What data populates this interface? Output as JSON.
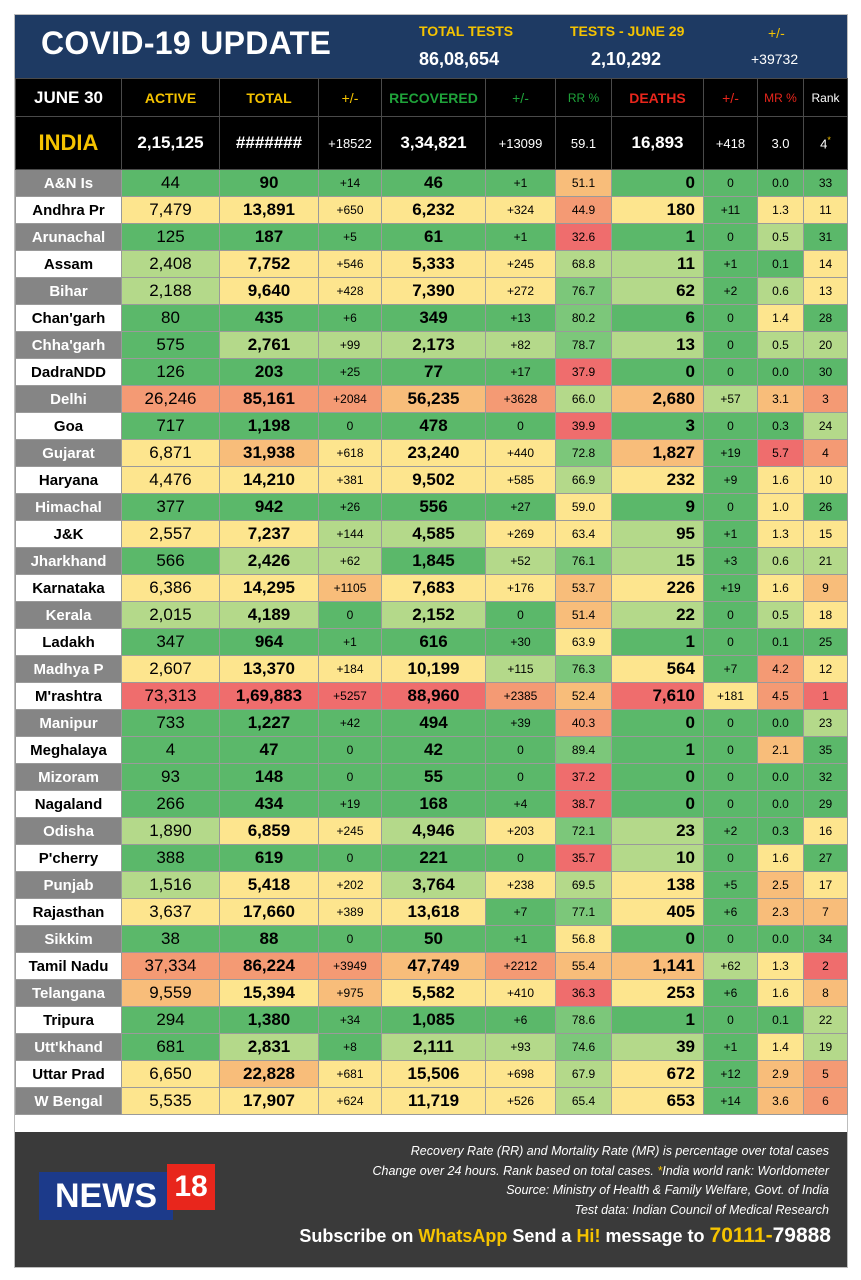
{
  "header": {
    "title": "COVID-19 UPDATE",
    "total_tests_label": "TOTAL TESTS",
    "total_tests_value": "86,08,654",
    "tests_day_label": "TESTS - JUNE 29",
    "tests_day_value": "2,10,292",
    "change_label": "+/-",
    "change_value": "+39732"
  },
  "columns": {
    "date": "JUNE 30",
    "active": "ACTIVE",
    "total": "TOTAL",
    "total_change": "+/-",
    "recovered": "RECOVERED",
    "recovered_change": "+/-",
    "rr": "RR %",
    "deaths": "DEATHS",
    "deaths_change": "+/-",
    "mr": "MR %",
    "rank": "Rank"
  },
  "india": {
    "name": "INDIA",
    "active": "2,15,125",
    "total": "#######",
    "total_change": "+18522",
    "recovered": "3,34,821",
    "recovered_change": "+13099",
    "rr": "59.1",
    "deaths": "16,893",
    "deaths_change": "+418",
    "mr": "3.0",
    "rank": "4",
    "rank_mark": "*"
  },
  "colors": {
    "green_dark": "#5bb86a",
    "green": "#7cc77a",
    "green_light": "#b4d98a",
    "yellow": "#fde58e",
    "orange": "#f8bd7a",
    "salmon": "#f49a74",
    "red": "#ef6d6d"
  },
  "states": [
    {
      "name": "A&N Is",
      "active": "44",
      "total": "90",
      "total_change": "+14",
      "recovered": "46",
      "recovered_change": "+1",
      "rr": "51.1",
      "deaths": "0",
      "deaths_change": "0",
      "mr": "0.0",
      "rank": "33"
    },
    {
      "name": "Andhra Pr",
      "active": "7,479",
      "total": "13,891",
      "total_change": "+650",
      "recovered": "6,232",
      "recovered_change": "+324",
      "rr": "44.9",
      "deaths": "180",
      "deaths_change": "+11",
      "mr": "1.3",
      "rank": "11"
    },
    {
      "name": "Arunachal",
      "active": "125",
      "total": "187",
      "total_change": "+5",
      "recovered": "61",
      "recovered_change": "+1",
      "rr": "32.6",
      "deaths": "1",
      "deaths_change": "0",
      "mr": "0.5",
      "rank": "31"
    },
    {
      "name": "Assam",
      "active": "2,408",
      "total": "7,752",
      "total_change": "+546",
      "recovered": "5,333",
      "recovered_change": "+245",
      "rr": "68.8",
      "deaths": "11",
      "deaths_change": "+1",
      "mr": "0.1",
      "rank": "14"
    },
    {
      "name": "Bihar",
      "active": "2,188",
      "total": "9,640",
      "total_change": "+428",
      "recovered": "7,390",
      "recovered_change": "+272",
      "rr": "76.7",
      "deaths": "62",
      "deaths_change": "+2",
      "mr": "0.6",
      "rank": "13"
    },
    {
      "name": "Chan'garh",
      "active": "80",
      "total": "435",
      "total_change": "+6",
      "recovered": "349",
      "recovered_change": "+13",
      "rr": "80.2",
      "deaths": "6",
      "deaths_change": "0",
      "mr": "1.4",
      "rank": "28"
    },
    {
      "name": "Chha'garh",
      "active": "575",
      "total": "2,761",
      "total_change": "+99",
      "recovered": "2,173",
      "recovered_change": "+82",
      "rr": "78.7",
      "deaths": "13",
      "deaths_change": "0",
      "mr": "0.5",
      "rank": "20"
    },
    {
      "name": "DadraNDD",
      "active": "126",
      "total": "203",
      "total_change": "+25",
      "recovered": "77",
      "recovered_change": "+17",
      "rr": "37.9",
      "deaths": "0",
      "deaths_change": "0",
      "mr": "0.0",
      "rank": "30"
    },
    {
      "name": "Delhi",
      "active": "26,246",
      "total": "85,161",
      "total_change": "+2084",
      "recovered": "56,235",
      "recovered_change": "+3628",
      "rr": "66.0",
      "deaths": "2,680",
      "deaths_change": "+57",
      "mr": "3.1",
      "rank": "3"
    },
    {
      "name": "Goa",
      "active": "717",
      "total": "1,198",
      "total_change": "0",
      "recovered": "478",
      "recovered_change": "0",
      "rr": "39.9",
      "deaths": "3",
      "deaths_change": "0",
      "mr": "0.3",
      "rank": "24"
    },
    {
      "name": "Gujarat",
      "active": "6,871",
      "total": "31,938",
      "total_change": "+618",
      "recovered": "23,240",
      "recovered_change": "+440",
      "rr": "72.8",
      "deaths": "1,827",
      "deaths_change": "+19",
      "mr": "5.7",
      "rank": "4"
    },
    {
      "name": "Haryana",
      "active": "4,476",
      "total": "14,210",
      "total_change": "+381",
      "recovered": "9,502",
      "recovered_change": "+585",
      "rr": "66.9",
      "deaths": "232",
      "deaths_change": "+9",
      "mr": "1.6",
      "rank": "10"
    },
    {
      "name": "Himachal",
      "active": "377",
      "total": "942",
      "total_change": "+26",
      "recovered": "556",
      "recovered_change": "+27",
      "rr": "59.0",
      "deaths": "9",
      "deaths_change": "0",
      "mr": "1.0",
      "rank": "26"
    },
    {
      "name": "J&K",
      "active": "2,557",
      "total": "7,237",
      "total_change": "+144",
      "recovered": "4,585",
      "recovered_change": "+269",
      "rr": "63.4",
      "deaths": "95",
      "deaths_change": "+1",
      "mr": "1.3",
      "rank": "15"
    },
    {
      "name": "Jharkhand",
      "active": "566",
      "total": "2,426",
      "total_change": "+62",
      "recovered": "1,845",
      "recovered_change": "+52",
      "rr": "76.1",
      "deaths": "15",
      "deaths_change": "+3",
      "mr": "0.6",
      "rank": "21"
    },
    {
      "name": "Karnataka",
      "active": "6,386",
      "total": "14,295",
      "total_change": "+1105",
      "recovered": "7,683",
      "recovered_change": "+176",
      "rr": "53.7",
      "deaths": "226",
      "deaths_change": "+19",
      "mr": "1.6",
      "rank": "9"
    },
    {
      "name": "Kerala",
      "active": "2,015",
      "total": "4,189",
      "total_change": "0",
      "recovered": "2,152",
      "recovered_change": "0",
      "rr": "51.4",
      "deaths": "22",
      "deaths_change": "0",
      "mr": "0.5",
      "rank": "18"
    },
    {
      "name": "Ladakh",
      "active": "347",
      "total": "964",
      "total_change": "+1",
      "recovered": "616",
      "recovered_change": "+30",
      "rr": "63.9",
      "deaths": "1",
      "deaths_change": "0",
      "mr": "0.1",
      "rank": "25"
    },
    {
      "name": "Madhya P",
      "active": "2,607",
      "total": "13,370",
      "total_change": "+184",
      "recovered": "10,199",
      "recovered_change": "+115",
      "rr": "76.3",
      "deaths": "564",
      "deaths_change": "+7",
      "mr": "4.2",
      "rank": "12"
    },
    {
      "name": "M'rashtra",
      "active": "73,313",
      "total": "1,69,883",
      "total_change": "+5257",
      "recovered": "88,960",
      "recovered_change": "+2385",
      "rr": "52.4",
      "deaths": "7,610",
      "deaths_change": "+181",
      "mr": "4.5",
      "rank": "1"
    },
    {
      "name": "Manipur",
      "active": "733",
      "total": "1,227",
      "total_change": "+42",
      "recovered": "494",
      "recovered_change": "+39",
      "rr": "40.3",
      "deaths": "0",
      "deaths_change": "0",
      "mr": "0.0",
      "rank": "23"
    },
    {
      "name": "Meghalaya",
      "active": "4",
      "total": "47",
      "total_change": "0",
      "recovered": "42",
      "recovered_change": "0",
      "rr": "89.4",
      "deaths": "1",
      "deaths_change": "0",
      "mr": "2.1",
      "rank": "35"
    },
    {
      "name": "Mizoram",
      "active": "93",
      "total": "148",
      "total_change": "0",
      "recovered": "55",
      "recovered_change": "0",
      "rr": "37.2",
      "deaths": "0",
      "deaths_change": "0",
      "mr": "0.0",
      "rank": "32"
    },
    {
      "name": "Nagaland",
      "active": "266",
      "total": "434",
      "total_change": "+19",
      "recovered": "168",
      "recovered_change": "+4",
      "rr": "38.7",
      "deaths": "0",
      "deaths_change": "0",
      "mr": "0.0",
      "rank": "29"
    },
    {
      "name": "Odisha",
      "active": "1,890",
      "total": "6,859",
      "total_change": "+245",
      "recovered": "4,946",
      "recovered_change": "+203",
      "rr": "72.1",
      "deaths": "23",
      "deaths_change": "+2",
      "mr": "0.3",
      "rank": "16"
    },
    {
      "name": "P'cherry",
      "active": "388",
      "total": "619",
      "total_change": "0",
      "recovered": "221",
      "recovered_change": "0",
      "rr": "35.7",
      "deaths": "10",
      "deaths_change": "0",
      "mr": "1.6",
      "rank": "27"
    },
    {
      "name": "Punjab",
      "active": "1,516",
      "total": "5,418",
      "total_change": "+202",
      "recovered": "3,764",
      "recovered_change": "+238",
      "rr": "69.5",
      "deaths": "138",
      "deaths_change": "+5",
      "mr": "2.5",
      "rank": "17"
    },
    {
      "name": "Rajasthan",
      "active": "3,637",
      "total": "17,660",
      "total_change": "+389",
      "recovered": "13,618",
      "recovered_change": "+7",
      "rr": "77.1",
      "deaths": "405",
      "deaths_change": "+6",
      "mr": "2.3",
      "rank": "7"
    },
    {
      "name": "Sikkim",
      "active": "38",
      "total": "88",
      "total_change": "0",
      "recovered": "50",
      "recovered_change": "+1",
      "rr": "56.8",
      "deaths": "0",
      "deaths_change": "0",
      "mr": "0.0",
      "rank": "34"
    },
    {
      "name": "Tamil Nadu",
      "active": "37,334",
      "total": "86,224",
      "total_change": "+3949",
      "recovered": "47,749",
      "recovered_change": "+2212",
      "rr": "55.4",
      "deaths": "1,141",
      "deaths_change": "+62",
      "mr": "1.3",
      "rank": "2"
    },
    {
      "name": "Telangana",
      "active": "9,559",
      "total": "15,394",
      "total_change": "+975",
      "recovered": "5,582",
      "recovered_change": "+410",
      "rr": "36.3",
      "deaths": "253",
      "deaths_change": "+6",
      "mr": "1.6",
      "rank": "8"
    },
    {
      "name": "Tripura",
      "active": "294",
      "total": "1,380",
      "total_change": "+34",
      "recovered": "1,085",
      "recovered_change": "+6",
      "rr": "78.6",
      "deaths": "1",
      "deaths_change": "0",
      "mr": "0.1",
      "rank": "22"
    },
    {
      "name": "Utt'khand",
      "active": "681",
      "total": "2,831",
      "total_change": "+8",
      "recovered": "2,111",
      "recovered_change": "+93",
      "rr": "74.6",
      "deaths": "39",
      "deaths_change": "+1",
      "mr": "1.4",
      "rank": "19"
    },
    {
      "name": "Uttar Prad",
      "active": "6,650",
      "total": "22,828",
      "total_change": "+681",
      "recovered": "15,506",
      "recovered_change": "+698",
      "rr": "67.9",
      "deaths": "672",
      "deaths_change": "+12",
      "mr": "2.9",
      "rank": "5"
    },
    {
      "name": "W Bengal",
      "active": "5,535",
      "total": "17,907",
      "total_change": "+624",
      "recovered": "11,719",
      "recovered_change": "+526",
      "rr": "65.4",
      "deaths": "653",
      "deaths_change": "+14",
      "mr": "3.6",
      "rank": "6"
    }
  ],
  "footer": {
    "logo_text": "NEWS",
    "logo_number": "18",
    "note1": "Recovery Rate (RR) and Mortality Rate (MR) is percentage over total cases",
    "note2_a": "Change over 24 hours. Rank based on total cases.",
    "note2_star": "*",
    "note2_b": "India world rank: Worldometer",
    "note3": "Source: Ministry of Health & Family Welfare, Govt. of India",
    "note4": "Test data: Indian Council of Medical Research",
    "subscribe_a": "Subscribe on",
    "subscribe_whatsapp": "WhatsApp",
    "subscribe_b": "Send a",
    "subscribe_hi": "Hi!",
    "subscribe_c": "message to",
    "phone_a": "70111-",
    "phone_b": "79888"
  }
}
